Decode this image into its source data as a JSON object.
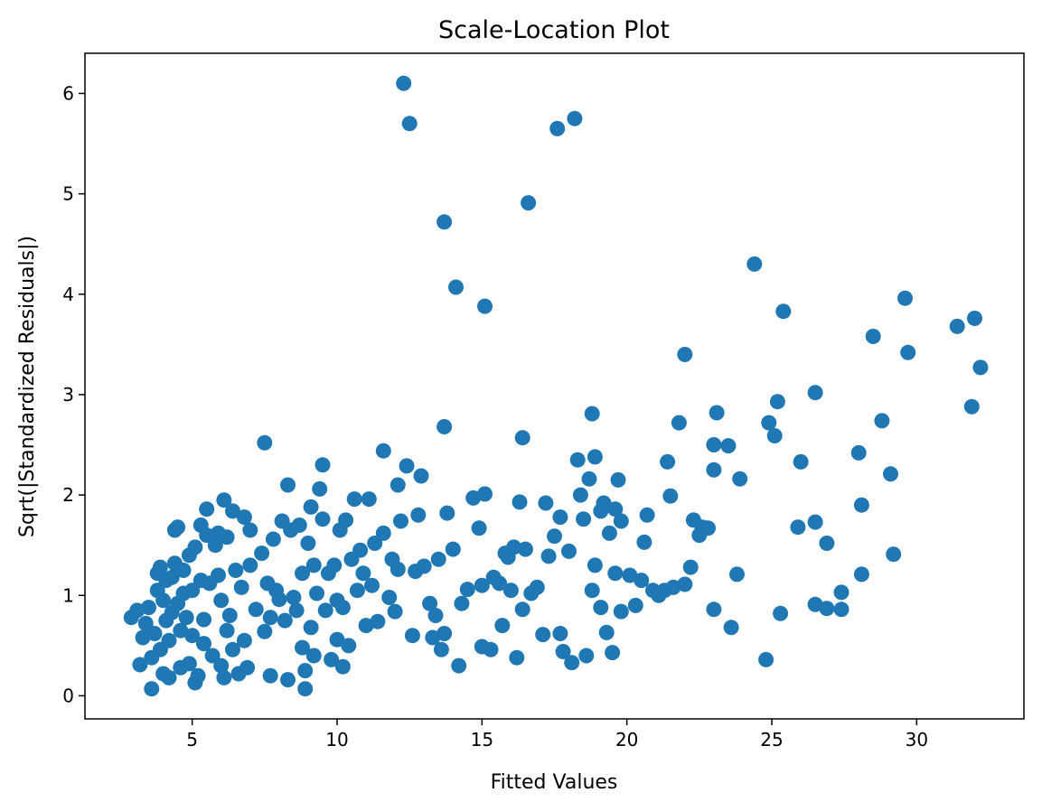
{
  "chart_data": {
    "type": "scatter",
    "title": "Scale-Location Plot",
    "xlabel": "Fitted Values",
    "ylabel": "Sqrt(|Standardized Residuals|)",
    "xlim": [
      1.3,
      33.7
    ],
    "ylim": [
      -0.23,
      6.4
    ],
    "xticks": [
      5,
      10,
      15,
      20,
      25,
      30
    ],
    "yticks": [
      0,
      1,
      2,
      3,
      4,
      5,
      6
    ],
    "grid": false,
    "marker_color": "#1f77b4",
    "series": [
      {
        "values": [
          [
            2.9,
            0.78
          ],
          [
            3.1,
            0.85
          ],
          [
            3.2,
            0.31
          ],
          [
            3.3,
            0.58
          ],
          [
            3.4,
            0.72
          ],
          [
            3.5,
            0.88
          ],
          [
            3.6,
            0.38
          ],
          [
            3.6,
            0.07
          ],
          [
            3.7,
            0.62
          ],
          [
            3.8,
            1.22
          ],
          [
            3.8,
            1.05
          ],
          [
            3.9,
            1.28
          ],
          [
            3.9,
            0.46
          ],
          [
            4.0,
            0.95
          ],
          [
            4.0,
            0.22
          ],
          [
            4.1,
            1.15
          ],
          [
            4.1,
            0.75
          ],
          [
            4.2,
            0.55
          ],
          [
            4.2,
            0.18
          ],
          [
            4.3,
            1.18
          ],
          [
            4.3,
            0.83
          ],
          [
            4.4,
            1.65
          ],
          [
            4.4,
            1.32
          ],
          [
            4.5,
            1.68
          ],
          [
            4.5,
            0.92
          ],
          [
            4.6,
            0.65
          ],
          [
            4.6,
            0.28
          ],
          [
            4.7,
            1.25
          ],
          [
            4.7,
            1.02
          ],
          [
            4.8,
            0.78
          ],
          [
            4.9,
            1.4
          ],
          [
            4.9,
            0.32
          ],
          [
            5.0,
            1.05
          ],
          [
            5.0,
            0.6
          ],
          [
            5.1,
            0.13
          ],
          [
            5.1,
            1.48
          ],
          [
            5.2,
            0.2
          ],
          [
            5.3,
            1.7
          ],
          [
            5.3,
            1.15
          ],
          [
            5.4,
            0.76
          ],
          [
            5.4,
            0.52
          ],
          [
            5.5,
            1.86
          ],
          [
            5.5,
            1.6
          ],
          [
            5.6,
            1.12
          ],
          [
            5.7,
            0.4
          ],
          [
            5.8,
            1.5
          ],
          [
            5.9,
            1.62
          ],
          [
            5.9,
            1.2
          ],
          [
            6.0,
            0.95
          ],
          [
            6.0,
            0.3
          ],
          [
            6.1,
            1.95
          ],
          [
            6.1,
            0.18
          ],
          [
            6.2,
            1.58
          ],
          [
            6.2,
            0.65
          ],
          [
            6.3,
            0.8
          ],
          [
            6.4,
            1.84
          ],
          [
            6.4,
            0.46
          ],
          [
            6.5,
            1.25
          ],
          [
            6.6,
            0.22
          ],
          [
            6.7,
            1.08
          ],
          [
            6.8,
            1.78
          ],
          [
            6.8,
            0.55
          ],
          [
            6.9,
            0.28
          ],
          [
            7.0,
            1.65
          ],
          [
            7.0,
            1.3
          ],
          [
            7.2,
            0.86
          ],
          [
            7.4,
            1.42
          ],
          [
            7.5,
            2.52
          ],
          [
            7.5,
            0.64
          ],
          [
            7.6,
            1.12
          ],
          [
            7.7,
            0.2
          ],
          [
            7.7,
            0.78
          ],
          [
            7.8,
            1.56
          ],
          [
            7.9,
            1.05
          ],
          [
            8.0,
            0.96
          ],
          [
            8.1,
            1.74
          ],
          [
            8.2,
            0.75
          ],
          [
            8.3,
            2.1
          ],
          [
            8.3,
            0.16
          ],
          [
            8.4,
            1.65
          ],
          [
            8.5,
            0.98
          ],
          [
            8.6,
            0.85
          ],
          [
            8.7,
            1.7
          ],
          [
            8.8,
            1.22
          ],
          [
            8.8,
            0.48
          ],
          [
            8.9,
            0.25
          ],
          [
            8.9,
            0.07
          ],
          [
            9.0,
            1.52
          ],
          [
            9.1,
            0.68
          ],
          [
            9.1,
            1.88
          ],
          [
            9.2,
            1.3
          ],
          [
            9.2,
            0.4
          ],
          [
            9.3,
            1.02
          ],
          [
            9.4,
            2.06
          ],
          [
            9.5,
            2.3
          ],
          [
            9.5,
            1.76
          ],
          [
            9.6,
            0.85
          ],
          [
            9.7,
            1.22
          ],
          [
            9.8,
            0.36
          ],
          [
            9.9,
            1.3
          ],
          [
            10.0,
            0.95
          ],
          [
            10.0,
            0.56
          ],
          [
            10.1,
            1.65
          ],
          [
            10.2,
            0.88
          ],
          [
            10.2,
            0.29
          ],
          [
            10.3,
            1.75
          ],
          [
            10.4,
            0.5
          ],
          [
            10.5,
            1.36
          ],
          [
            10.6,
            1.96
          ],
          [
            10.7,
            1.05
          ],
          [
            10.8,
            1.45
          ],
          [
            10.9,
            1.22
          ],
          [
            11.0,
            0.7
          ],
          [
            11.1,
            1.96
          ],
          [
            11.2,
            1.1
          ],
          [
            11.3,
            1.52
          ],
          [
            11.4,
            0.74
          ],
          [
            11.6,
            2.44
          ],
          [
            11.6,
            1.62
          ],
          [
            11.8,
            0.98
          ],
          [
            11.9,
            1.36
          ],
          [
            12.0,
            0.84
          ],
          [
            12.1,
            1.26
          ],
          [
            12.1,
            2.1
          ],
          [
            12.2,
            1.74
          ],
          [
            12.3,
            6.1
          ],
          [
            12.4,
            2.29
          ],
          [
            12.5,
            5.7
          ],
          [
            12.6,
            0.6
          ],
          [
            12.7,
            1.24
          ],
          [
            12.8,
            1.8
          ],
          [
            12.9,
            2.19
          ],
          [
            13.0,
            1.29
          ],
          [
            13.2,
            0.92
          ],
          [
            13.3,
            0.58
          ],
          [
            13.4,
            0.8
          ],
          [
            13.5,
            1.36
          ],
          [
            13.6,
            0.46
          ],
          [
            13.7,
            4.72
          ],
          [
            13.7,
            0.62
          ],
          [
            13.7,
            2.68
          ],
          [
            13.8,
            1.82
          ],
          [
            14.0,
            1.46
          ],
          [
            14.1,
            4.07
          ],
          [
            14.2,
            0.3
          ],
          [
            14.3,
            0.92
          ],
          [
            14.5,
            1.06
          ],
          [
            14.7,
            1.97
          ],
          [
            14.9,
            1.67
          ],
          [
            15.0,
            0.49
          ],
          [
            15.0,
            1.1
          ],
          [
            15.1,
            3.88
          ],
          [
            15.1,
            2.01
          ],
          [
            15.3,
            0.46
          ],
          [
            15.4,
            1.18
          ],
          [
            15.6,
            1.12
          ],
          [
            15.7,
            0.7
          ],
          [
            15.8,
            1.42
          ],
          [
            15.9,
            1.38
          ],
          [
            16.0,
            1.05
          ],
          [
            16.1,
            1.48
          ],
          [
            16.2,
            0.38
          ],
          [
            16.3,
            1.93
          ],
          [
            16.4,
            2.57
          ],
          [
            16.4,
            0.86
          ],
          [
            16.5,
            1.46
          ],
          [
            16.6,
            4.91
          ],
          [
            16.7,
            1.02
          ],
          [
            16.9,
            1.08
          ],
          [
            17.1,
            0.61
          ],
          [
            17.2,
            1.92
          ],
          [
            17.3,
            1.39
          ],
          [
            17.5,
            1.59
          ],
          [
            17.6,
            5.65
          ],
          [
            17.7,
            0.62
          ],
          [
            17.7,
            1.78
          ],
          [
            17.8,
            0.44
          ],
          [
            18.0,
            1.44
          ],
          [
            18.1,
            0.33
          ],
          [
            18.2,
            5.75
          ],
          [
            18.3,
            2.35
          ],
          [
            18.4,
            2.0
          ],
          [
            18.5,
            1.76
          ],
          [
            18.6,
            0.4
          ],
          [
            18.7,
            2.16
          ],
          [
            18.8,
            2.81
          ],
          [
            18.8,
            1.05
          ],
          [
            18.9,
            1.3
          ],
          [
            18.9,
            2.38
          ],
          [
            19.1,
            1.84
          ],
          [
            19.1,
            0.88
          ],
          [
            19.2,
            1.92
          ],
          [
            19.3,
            0.63
          ],
          [
            19.4,
            1.62
          ],
          [
            19.5,
            0.43
          ],
          [
            19.6,
            1.86
          ],
          [
            19.6,
            1.22
          ],
          [
            19.7,
            2.15
          ],
          [
            19.8,
            0.84
          ],
          [
            19.8,
            1.74
          ],
          [
            20.1,
            1.2
          ],
          [
            20.3,
            0.9
          ],
          [
            20.5,
            1.15
          ],
          [
            20.6,
            1.53
          ],
          [
            20.7,
            1.8
          ],
          [
            20.9,
            1.05
          ],
          [
            21.1,
            1.0
          ],
          [
            21.3,
            1.05
          ],
          [
            21.4,
            2.33
          ],
          [
            21.5,
            1.99
          ],
          [
            21.6,
            1.08
          ],
          [
            21.8,
            2.72
          ],
          [
            22.0,
            3.4
          ],
          [
            22.0,
            1.11
          ],
          [
            22.2,
            1.28
          ],
          [
            22.3,
            1.75
          ],
          [
            22.5,
            1.6
          ],
          [
            22.6,
            1.68
          ],
          [
            22.8,
            1.67
          ],
          [
            23.0,
            2.5
          ],
          [
            23.0,
            0.86
          ],
          [
            23.0,
            2.25
          ],
          [
            23.1,
            2.82
          ],
          [
            23.5,
            2.49
          ],
          [
            23.6,
            0.68
          ],
          [
            23.8,
            1.21
          ],
          [
            23.9,
            2.16
          ],
          [
            24.4,
            4.3
          ],
          [
            24.8,
            0.36
          ],
          [
            24.9,
            2.72
          ],
          [
            25.1,
            2.59
          ],
          [
            25.2,
            2.93
          ],
          [
            25.3,
            0.82
          ],
          [
            25.4,
            3.83
          ],
          [
            25.9,
            1.68
          ],
          [
            26.0,
            2.33
          ],
          [
            26.5,
            3.02
          ],
          [
            26.5,
            0.91
          ],
          [
            26.5,
            1.73
          ],
          [
            26.9,
            1.52
          ],
          [
            26.9,
            0.87
          ],
          [
            27.4,
            1.03
          ],
          [
            27.4,
            0.86
          ],
          [
            28.0,
            2.42
          ],
          [
            28.1,
            1.9
          ],
          [
            28.1,
            1.21
          ],
          [
            28.5,
            3.58
          ],
          [
            28.8,
            2.74
          ],
          [
            29.1,
            2.21
          ],
          [
            29.2,
            1.41
          ],
          [
            29.6,
            3.96
          ],
          [
            29.7,
            3.42
          ],
          [
            31.4,
            3.68
          ],
          [
            31.9,
            2.88
          ],
          [
            32.0,
            3.76
          ],
          [
            32.2,
            3.27
          ]
        ]
      }
    ]
  }
}
